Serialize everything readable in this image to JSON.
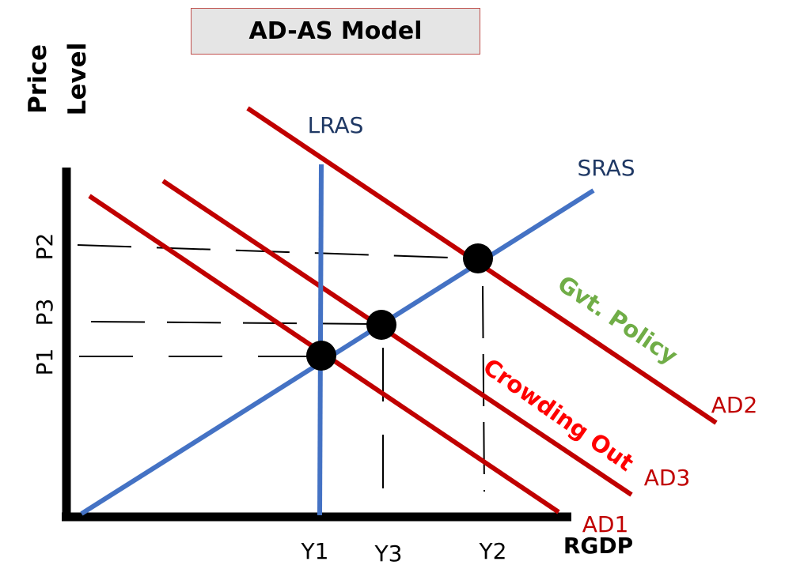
{
  "title": "AD-AS Model",
  "axes": {
    "y_label_line1": "Price",
    "y_label_line2": "Level",
    "x_label": "RGDP"
  },
  "price_labels": {
    "p1": "P1",
    "p2": "P2",
    "p3": "P3"
  },
  "output_labels": {
    "y1": "Y1",
    "y2": "Y2",
    "y3": "Y3"
  },
  "curves": {
    "lras": "LRAS",
    "sras": "SRAS",
    "ad1": "AD1",
    "ad2": "AD2",
    "ad3": "AD3"
  },
  "annotations": {
    "policy": "Gvt. Policy",
    "crowding": "Crowding Out"
  },
  "colors": {
    "demand": "#c00000",
    "supply": "#4472c4",
    "supply_label": "#1f3864",
    "policy": "#70ad47",
    "crowding": "#ff0000",
    "axis": "#000000"
  }
}
